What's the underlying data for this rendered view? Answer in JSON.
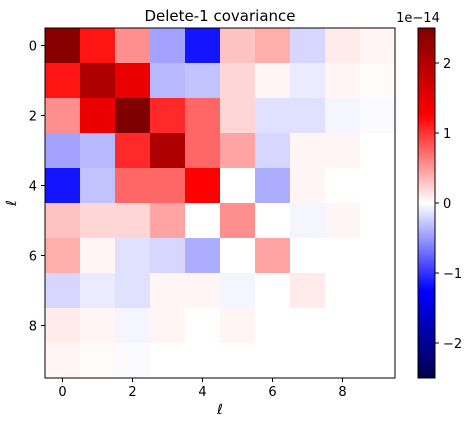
{
  "chart_data": {
    "type": "heatmap",
    "title": "Delete-1 covariance",
    "xlabel": "ℓ",
    "ylabel": "ℓ",
    "x_ticks": [
      "0",
      "2",
      "4",
      "6",
      "8"
    ],
    "y_ticks": [
      "0",
      "2",
      "4",
      "6",
      "8"
    ],
    "colormap": "seismic",
    "colorbar": {
      "min": -2.5,
      "max": 2.5,
      "ticks": [
        "2",
        "1",
        "0",
        "−1",
        "−2"
      ],
      "tick_values": [
        2,
        1,
        0,
        -1,
        -2
      ],
      "offset_label": "1e−14"
    },
    "size": 10,
    "values": [
      [
        2.4,
        1.15,
        0.55,
        -0.45,
        -1.15,
        0.3,
        0.4,
        -0.2,
        0.1,
        0.05
      ],
      [
        1.15,
        2.05,
        1.45,
        -0.35,
        -0.3,
        0.2,
        0.05,
        -0.1,
        0.05,
        0.02
      ],
      [
        0.55,
        1.45,
        2.5,
        1.05,
        0.75,
        0.2,
        -0.15,
        -0.15,
        -0.05,
        -0.02
      ],
      [
        -0.45,
        -0.35,
        1.05,
        2.05,
        0.75,
        0.45,
        -0.2,
        0.05,
        0.05,
        0.0
      ],
      [
        -1.15,
        -0.3,
        0.75,
        0.75,
        1.25,
        0.0,
        -0.4,
        0.05,
        0.0,
        0.0
      ],
      [
        0.3,
        0.2,
        0.2,
        0.45,
        0.0,
        0.55,
        0.0,
        -0.05,
        0.05,
        0.0
      ],
      [
        0.4,
        0.05,
        -0.15,
        -0.2,
        -0.4,
        0.0,
        0.45,
        0.0,
        0.0,
        0.0
      ],
      [
        -0.2,
        -0.1,
        -0.15,
        0.05,
        0.05,
        -0.05,
        0.0,
        0.1,
        0.0,
        0.0
      ],
      [
        0.1,
        0.05,
        -0.05,
        0.05,
        0.0,
        0.05,
        0.0,
        0.0,
        0.0,
        0.0
      ],
      [
        0.05,
        0.02,
        -0.02,
        0.0,
        0.0,
        0.0,
        0.0,
        0.0,
        0.0,
        0.0
      ]
    ]
  }
}
